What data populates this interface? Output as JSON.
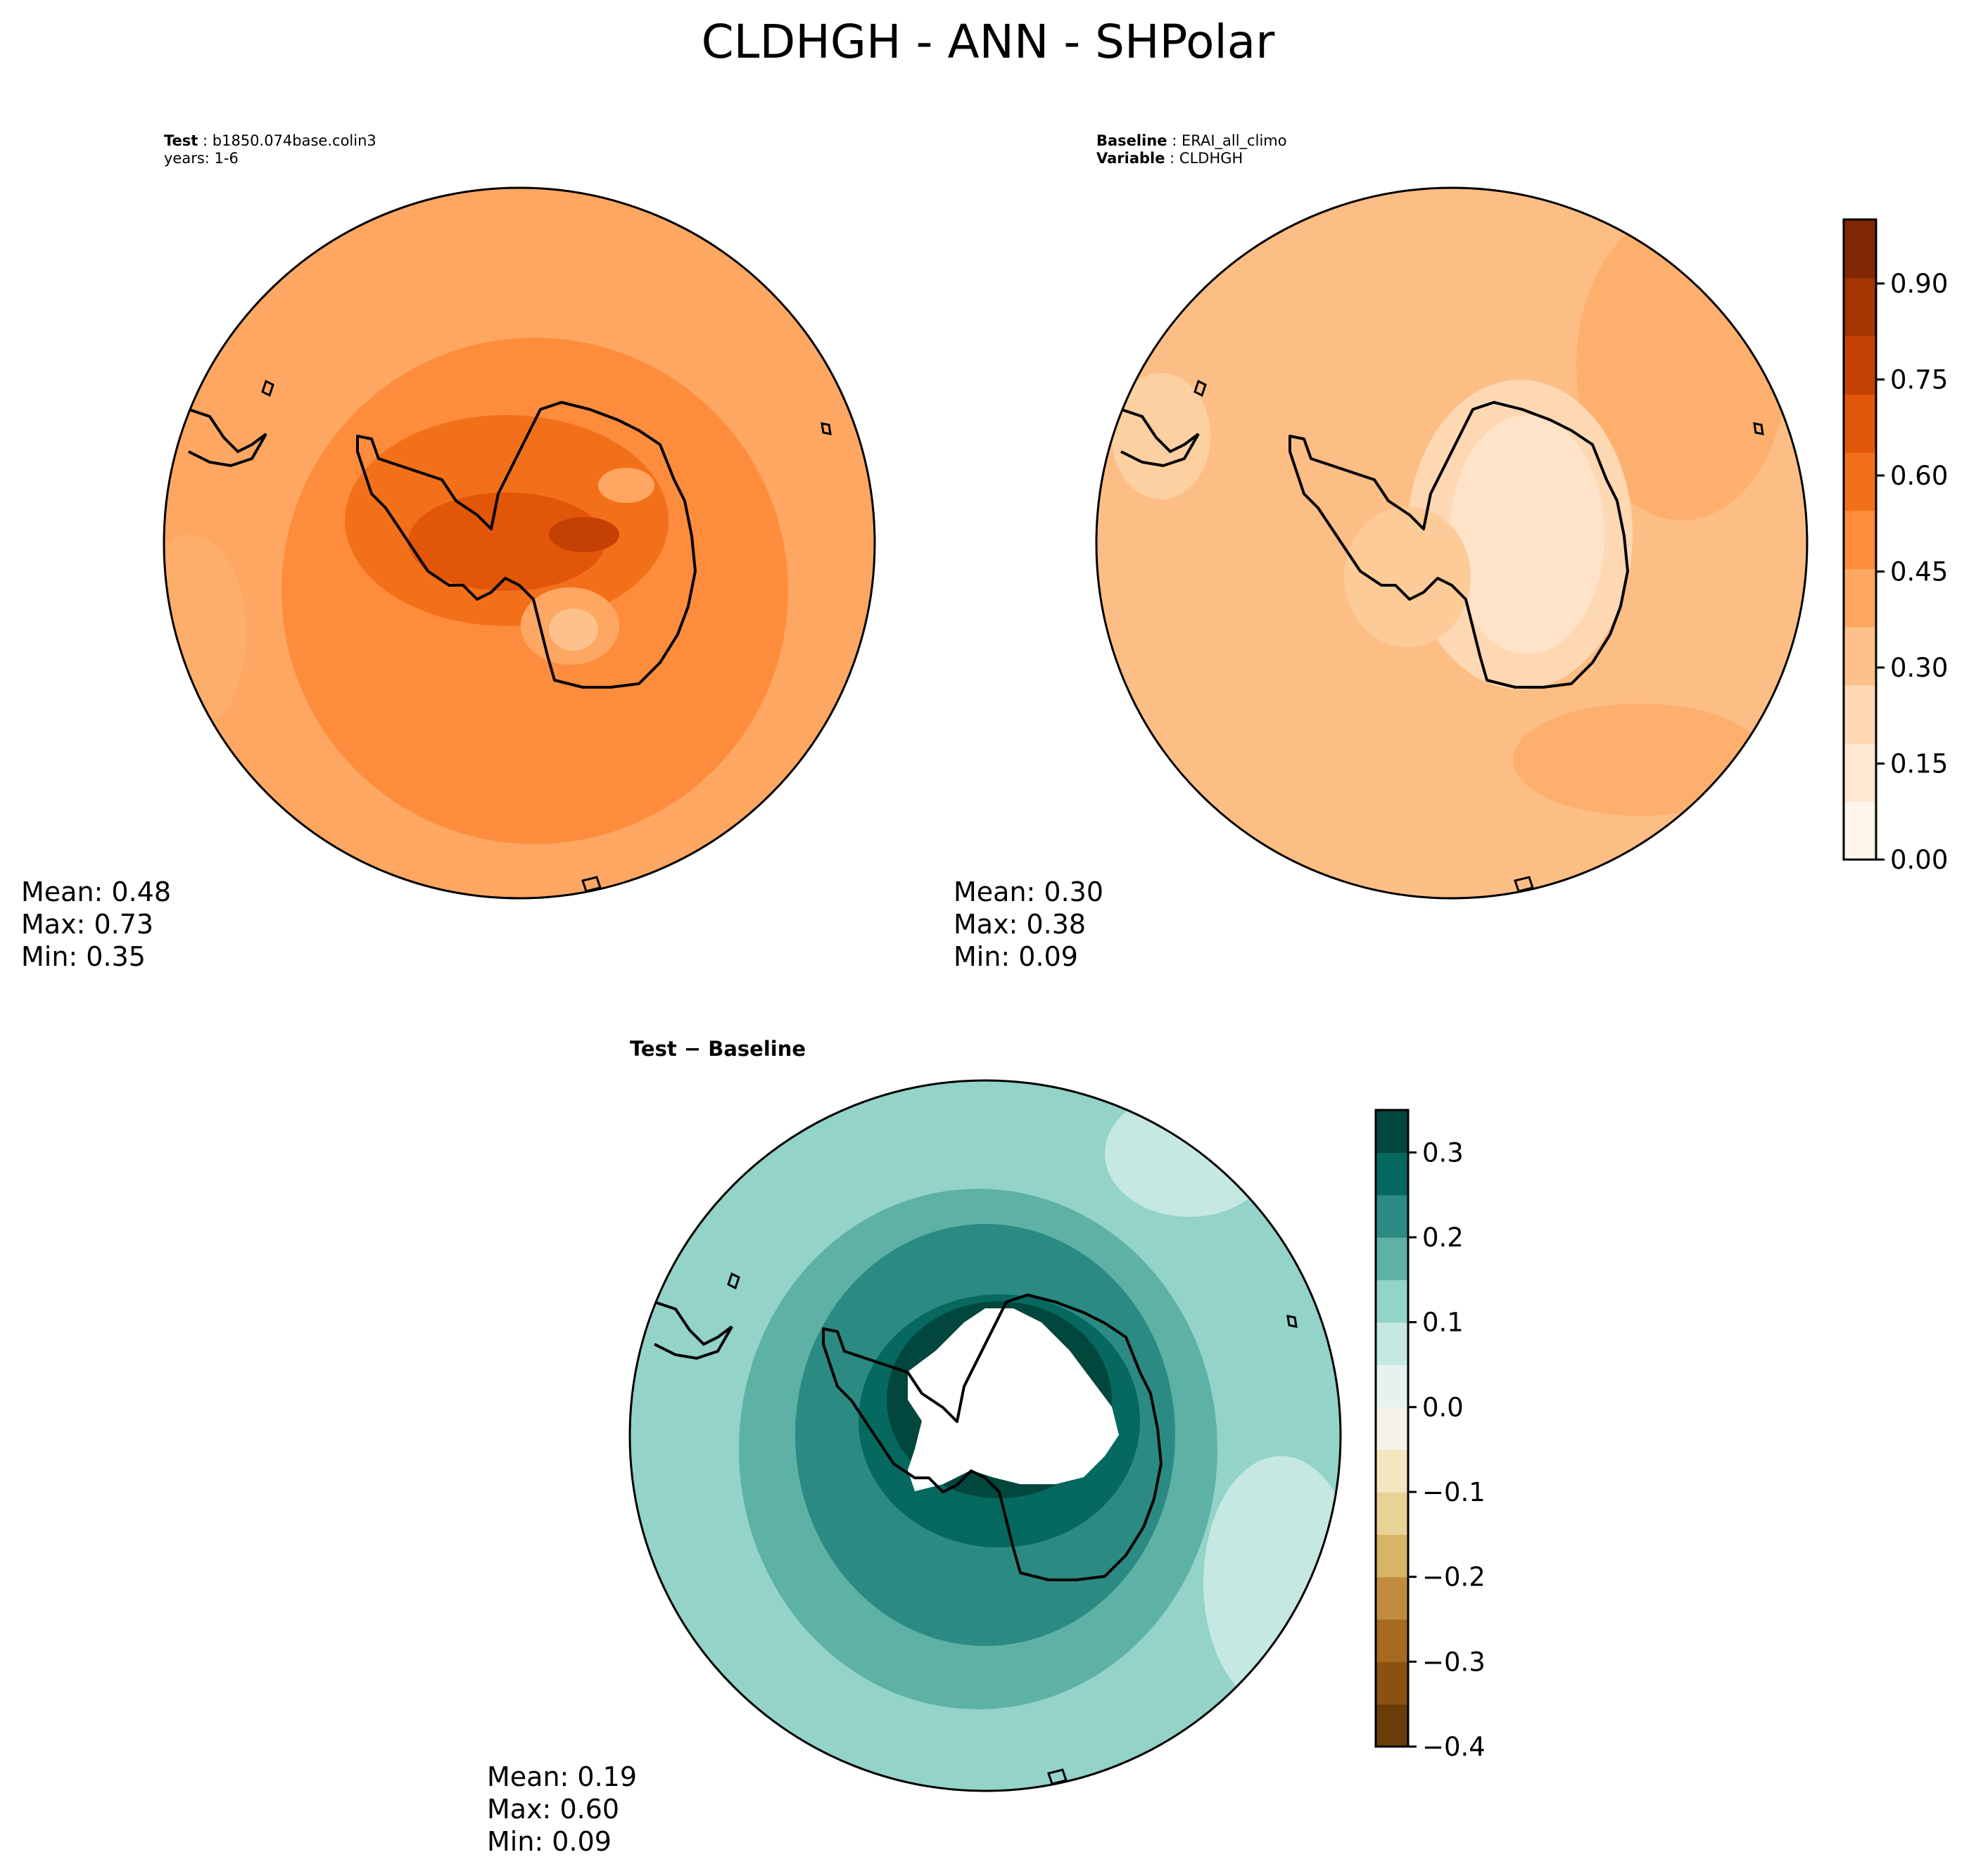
{
  "title": "CLDHGH - ANN - SHPolar",
  "panels": {
    "test": {
      "label": "Test",
      "name": "b1850.074base.colin3",
      "years": "years: 1-6",
      "mean": "Mean:  0.48",
      "max": "Max:  0.73",
      "min": "Min:  0.35"
    },
    "baseline": {
      "label": "Baseline",
      "name": "ERAI_all_climo",
      "var_label": "Variable",
      "var_name": "CLDHGH",
      "mean": "Mean:  0.30",
      "max": "Max:  0.38",
      "min": "Min:  0.09"
    },
    "diff": {
      "title": "Test − Baseline",
      "mean": "Mean:  0.19",
      "max": "Max:  0.60",
      "min": "Min:  0.09"
    }
  },
  "colorbars": {
    "main": {
      "ticks": [
        "0.00",
        "0.15",
        "0.30",
        "0.45",
        "0.60",
        "0.75",
        "0.90"
      ],
      "colors": [
        "#fff5eb",
        "#fee8d3",
        "#fdd8b3",
        "#fdc28c",
        "#fda762",
        "#fd8d3c",
        "#f3701b",
        "#e25609",
        "#c44103",
        "#a33503",
        "#7f2704"
      ]
    },
    "diff": {
      "ticks": [
        "−0.4",
        "−0.3",
        "−0.2",
        "−0.1",
        "0.0",
        "0.1",
        "0.2",
        "0.3"
      ],
      "colors": [
        "#693c0a",
        "#8a510f",
        "#a76a21",
        "#c18b3e",
        "#d7b467",
        "#e8d296",
        "#f4e6c0",
        "#f5f1e6",
        "#e6f2f0",
        "#c5e8e2",
        "#93d3c8",
        "#5eb1a5",
        "#2b8b82",
        "#05695f",
        "#01473d"
      ]
    }
  }
}
